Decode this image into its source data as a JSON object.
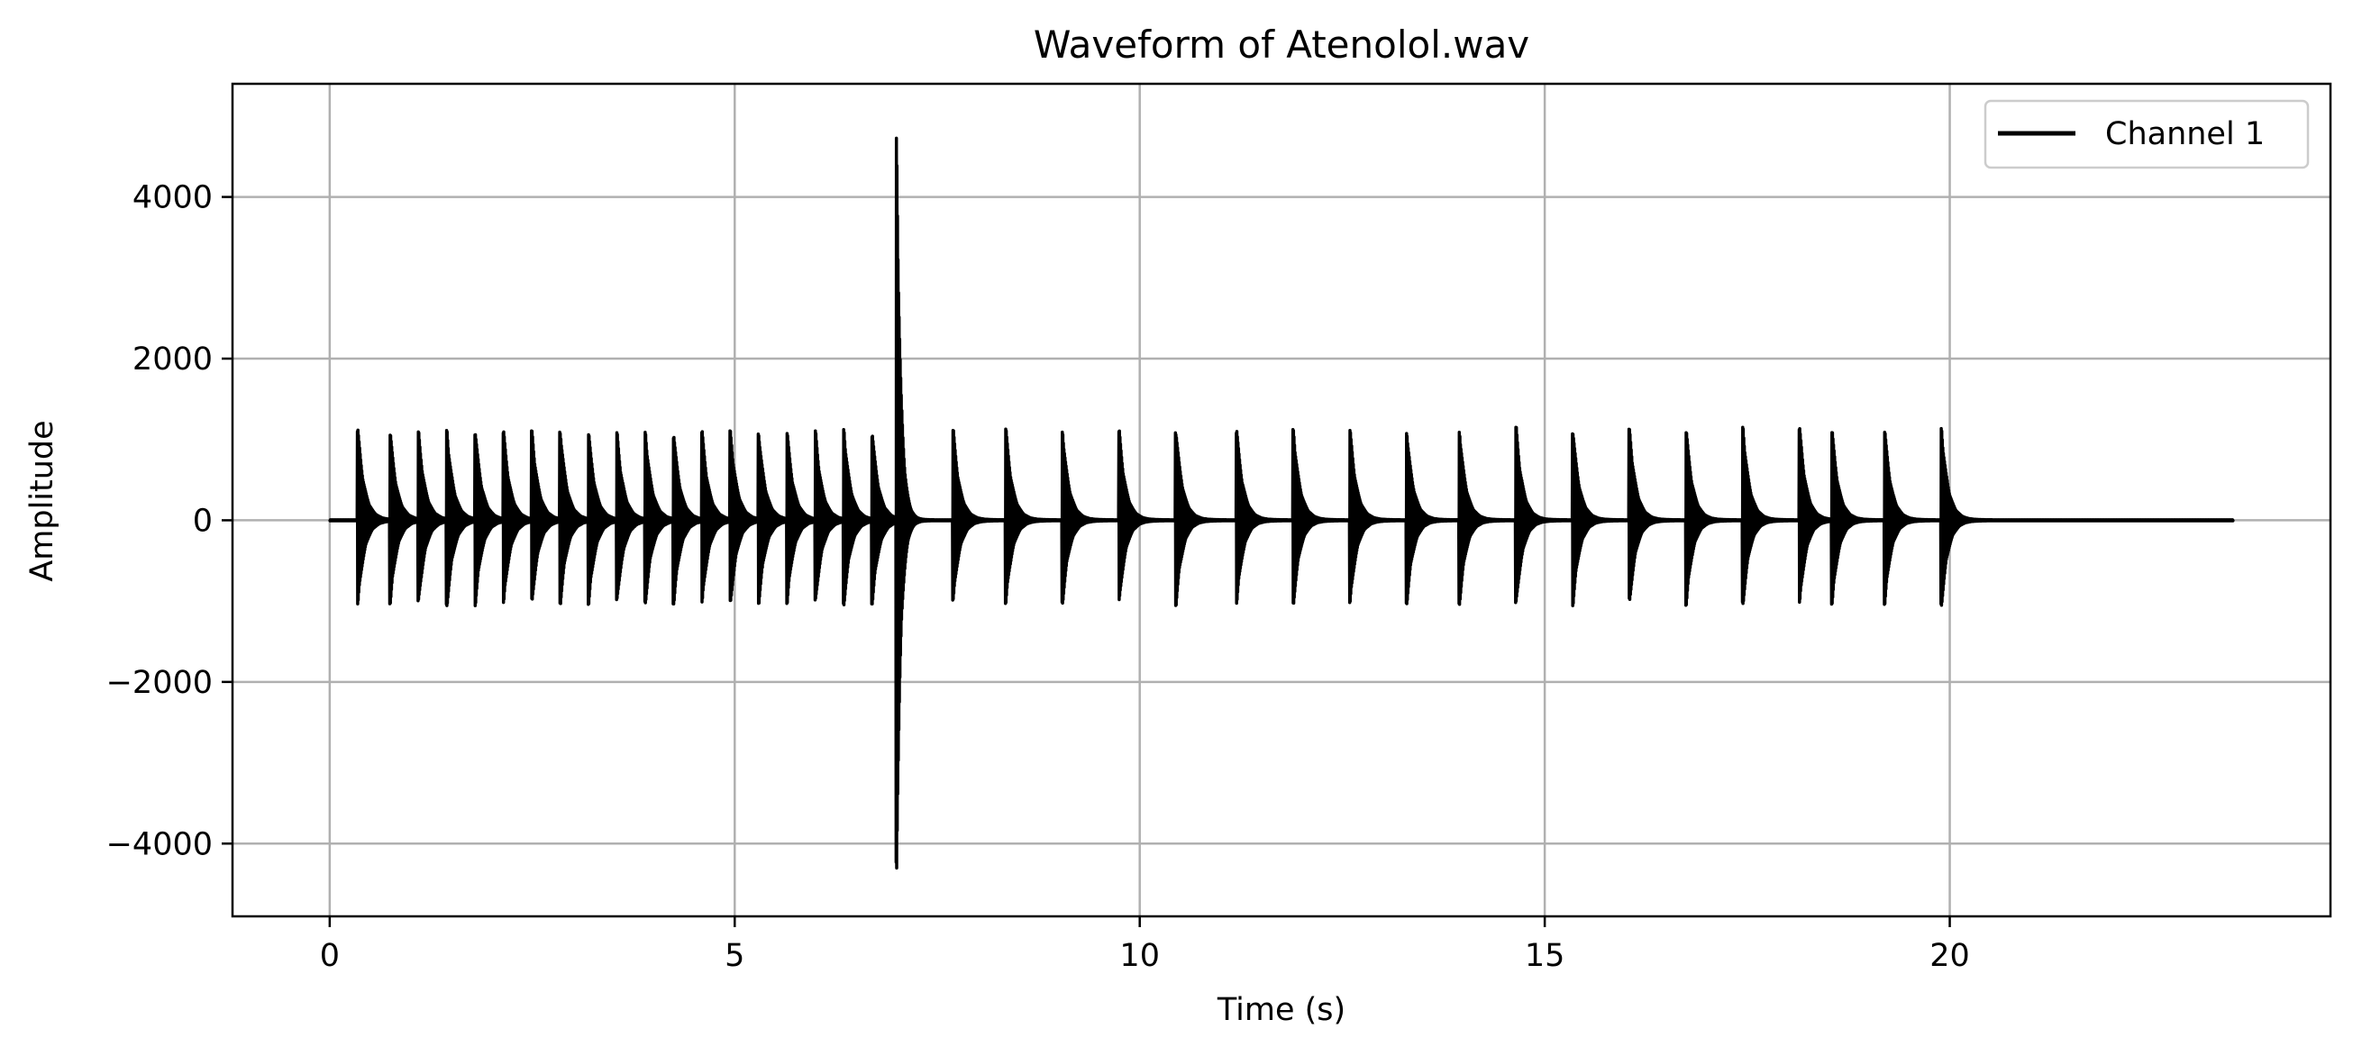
{
  "chart_data": {
    "type": "line",
    "title": "Waveform of Atenolol.wav",
    "xlabel": "Time (s)",
    "ylabel": "Amplitude",
    "xlim": [
      -1.2,
      24.7
    ],
    "ylim": [
      -4900,
      5400
    ],
    "x_ticks": [
      0,
      5,
      10,
      15,
      20
    ],
    "x_tick_labels": [
      "0",
      "5",
      "10",
      "15",
      "20"
    ],
    "y_ticks": [
      4000,
      2000,
      0,
      -2000,
      -4000
    ],
    "y_tick_labels": [
      "4000",
      "2000",
      "0",
      "−2000",
      "−4000"
    ],
    "grid": true,
    "legend_position": "top-right",
    "duration_s": 23.5,
    "series": [
      {
        "name": "Channel 1",
        "color": "#000000",
        "beats": [
          {
            "t": 0.35,
            "max": 1130,
            "min": -1050
          },
          {
            "t": 0.75,
            "max": 1100,
            "min": -1030
          },
          {
            "t": 1.1,
            "max": 1090,
            "min": -1040
          },
          {
            "t": 1.45,
            "max": 1120,
            "min": -1080
          },
          {
            "t": 1.8,
            "max": 1130,
            "min": -1050
          },
          {
            "t": 2.15,
            "max": 1100,
            "min": -1040
          },
          {
            "t": 2.5,
            "max": 1100,
            "min": -1030
          },
          {
            "t": 2.85,
            "max": 1120,
            "min": -1030
          },
          {
            "t": 3.2,
            "max": 1100,
            "min": -1040
          },
          {
            "t": 3.55,
            "max": 1080,
            "min": -1030
          },
          {
            "t": 3.9,
            "max": 1100,
            "min": -1040
          },
          {
            "t": 4.25,
            "max": 1090,
            "min": -1030
          },
          {
            "t": 4.6,
            "max": 1100,
            "min": -1040
          },
          {
            "t": 4.95,
            "max": 1100,
            "min": -1050
          },
          {
            "t": 5.3,
            "max": 1100,
            "min": -1030
          },
          {
            "t": 5.65,
            "max": 1110,
            "min": -1030
          },
          {
            "t": 6.0,
            "max": 1100,
            "min": -1040
          },
          {
            "t": 6.35,
            "max": 1140,
            "min": -1060
          },
          {
            "t": 6.7,
            "max": 1110,
            "min": -1030
          },
          {
            "t": 7.0,
            "max": 4800,
            "min": -4400
          },
          {
            "t": 7.7,
            "max": 1130,
            "min": -1000
          },
          {
            "t": 8.35,
            "max": 1150,
            "min": -1040
          },
          {
            "t": 9.05,
            "max": 1120,
            "min": -1030
          },
          {
            "t": 9.75,
            "max": 1100,
            "min": -1030
          },
          {
            "t": 10.45,
            "max": 1140,
            "min": -1050
          },
          {
            "t": 11.2,
            "max": 1130,
            "min": -1030
          },
          {
            "t": 11.9,
            "max": 1130,
            "min": -1050
          },
          {
            "t": 12.6,
            "max": 1120,
            "min": -1040
          },
          {
            "t": 13.3,
            "max": 1120,
            "min": -1030
          },
          {
            "t": 13.95,
            "max": 1130,
            "min": -1040
          },
          {
            "t": 14.65,
            "max": 1150,
            "min": -1060
          },
          {
            "t": 15.35,
            "max": 1140,
            "min": -1050
          },
          {
            "t": 16.05,
            "max": 1120,
            "min": -1030
          },
          {
            "t": 16.75,
            "max": 1130,
            "min": -1050
          },
          {
            "t": 17.45,
            "max": 1160,
            "min": -1050
          },
          {
            "t": 18.15,
            "max": 1140,
            "min": -1040
          },
          {
            "t": 18.55,
            "max": 1120,
            "min": -1040
          },
          {
            "t": 19.2,
            "max": 1130,
            "min": -1040
          },
          {
            "t": 19.9,
            "max": 1150,
            "min": -1070
          }
        ]
      }
    ]
  }
}
